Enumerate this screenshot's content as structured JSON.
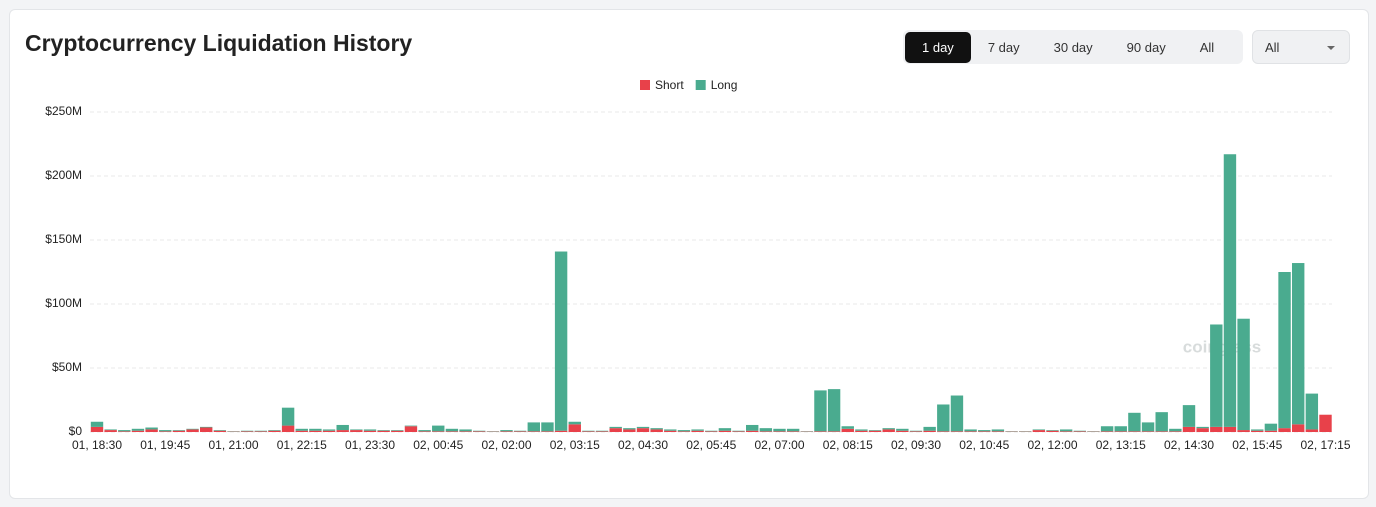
{
  "header": {
    "title": "Cryptocurrency Liquidation History",
    "ranges": [
      "1 day",
      "7 day",
      "30 day",
      "90 day",
      "All"
    ],
    "active_range": 0,
    "filter": "All"
  },
  "watermark": "coinglass",
  "chart_data": {
    "type": "stacked-bar",
    "categories": [
      "01, 18:30",
      null,
      null,
      null,
      null,
      "01, 19:45",
      null,
      null,
      null,
      null,
      "01, 21:00",
      null,
      null,
      null,
      null,
      "01, 22:15",
      null,
      null,
      null,
      null,
      "01, 23:30",
      null,
      null,
      null,
      null,
      "02, 00:45",
      null,
      null,
      null,
      null,
      "02, 02:00",
      null,
      null,
      null,
      null,
      "02, 03:15",
      null,
      null,
      null,
      null,
      "02, 04:30",
      null,
      null,
      null,
      null,
      "02, 05:45",
      null,
      null,
      null,
      null,
      "02, 07:00",
      null,
      null,
      null,
      null,
      "02, 08:15",
      null,
      null,
      null,
      null,
      "02, 09:30",
      null,
      null,
      null,
      null,
      "02, 10:45",
      null,
      null,
      null,
      null,
      "02, 12:00",
      null,
      null,
      null,
      null,
      "02, 13:15",
      null,
      null,
      null,
      null,
      "02, 14:30",
      null,
      null,
      null,
      null,
      "02, 15:45",
      null,
      null,
      null,
      null,
      "02, 17:15"
    ],
    "series": [
      {
        "name": "Short",
        "color": "#e8414a",
        "values": [
          4,
          1.5,
          0.5,
          1,
          2,
          0.5,
          1,
          2,
          3.5,
          1,
          0.3,
          0.5,
          0.5,
          1,
          5,
          1,
          1,
          1,
          1.5,
          1.5,
          1,
          1,
          1,
          4.5,
          0.5,
          0.5,
          0.5,
          0.5,
          0.5,
          0.3,
          0.5,
          0.5,
          0.5,
          0.5,
          1,
          6,
          0.5,
          0.5,
          3,
          2,
          3,
          2,
          1,
          0.5,
          1,
          0.5,
          1,
          0.5,
          1,
          0.5,
          0.5,
          0.5,
          0.3,
          0.5,
          0.5,
          2.5,
          1,
          1,
          2,
          1,
          0.5,
          1,
          0.5,
          0.5,
          0.5,
          0.5,
          0.5,
          0.3,
          0.3,
          1.5,
          1,
          0.5,
          0.5,
          0.3,
          0.5,
          0.5,
          0.5,
          0.5,
          0.5,
          0.5,
          4,
          3,
          4,
          4,
          1.5,
          1,
          1,
          3,
          6,
          2,
          13.5
        ]
      },
      {
        "name": "Long",
        "color": "#4aab8f",
        "values": [
          4,
          0.5,
          1,
          1.5,
          1.5,
          1,
          0.5,
          0.5,
          0.5,
          0.5,
          0.3,
          0.5,
          0.5,
          0.5,
          14,
          1.5,
          1.5,
          1,
          4,
          0.5,
          1,
          0.5,
          0.5,
          0.5,
          1,
          4.5,
          2,
          1.5,
          0.5,
          0.3,
          1,
          0.5,
          7,
          7,
          140,
          2,
          0.5,
          0.5,
          1,
          1,
          1,
          1,
          1,
          1,
          1,
          0.5,
          2,
          0.5,
          4.5,
          2.5,
          2,
          2,
          0.3,
          32,
          33,
          2,
          1,
          0.5,
          1,
          1.5,
          0.5,
          3,
          21,
          28,
          1.5,
          1,
          1.5,
          0.3,
          0.3,
          0.5,
          0.5,
          1.5,
          0.5,
          0.3,
          4,
          4,
          14.5,
          7,
          15,
          2,
          17,
          1,
          80,
          213,
          87,
          1,
          5.5,
          122,
          126,
          28,
          0
        ]
      }
    ],
    "ylim": [
      0,
      250
    ],
    "yticks": [
      {
        "value": 0,
        "label": "$0"
      },
      {
        "value": 50,
        "label": "$50M"
      },
      {
        "value": 100,
        "label": "$100M"
      },
      {
        "value": 150,
        "label": "$150M"
      },
      {
        "value": 200,
        "label": "$200M"
      },
      {
        "value": 250,
        "label": "$250M"
      }
    ],
    "grid": true,
    "legend": "top"
  }
}
